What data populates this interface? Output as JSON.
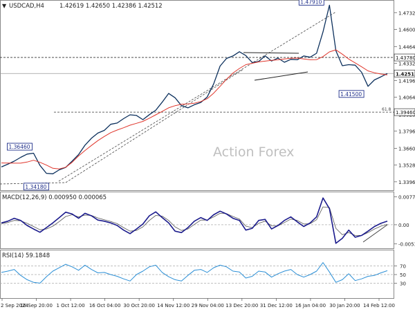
{
  "header": {
    "symbol": "USDCAD,H4",
    "ohlc": "1.42619 1.42650 1.42386 1.42512"
  },
  "watermark": "Action Forex",
  "colors": {
    "price": "#0b2f5c",
    "ma": "#e0352b",
    "macd": "#1a1a8c",
    "signal": "#555555",
    "rsi": "#2b8fd6",
    "grid": "#bbbbbb",
    "box": "#1f2f8a"
  },
  "chart_data": [
    {
      "type": "line",
      "name": "price",
      "y_range": [
        1.3346,
        1.4788
      ],
      "y_ticks": [
        "1.47320",
        "1.46000",
        "1.44640",
        "1.43320",
        "1.41960",
        "1.40640",
        "1.39280",
        "1.37960",
        "1.36600",
        "1.35280",
        "1.33960"
      ],
      "x_ticks": [
        "2 Sep 2024",
        "16 Sep 20:00",
        "1 Oct 12:00",
        "16 Oct 04:00",
        "30 Oct 20:00",
        "14 Nov 12:00",
        "29 Nov 04:00",
        "13 Dec 20:00",
        "31 Dec 12:00",
        "16 Jan 04:00",
        "30 Jan 20:00",
        "14 Feb 12:00"
      ],
      "series": [
        {
          "values": [
            1.3513,
            1.3535,
            1.3559,
            1.3589,
            1.3615,
            1.3622,
            1.3525,
            1.3463,
            1.3459,
            1.3491,
            1.351,
            1.3559,
            1.3611,
            1.3685,
            1.374,
            1.3781,
            1.3802,
            1.385,
            1.386,
            1.3895,
            1.3925,
            1.392,
            1.3887,
            1.3926,
            1.3961,
            1.4025,
            1.4094,
            1.406,
            1.3997,
            1.398,
            1.4005,
            1.4023,
            1.4066,
            1.4169,
            1.431,
            1.437,
            1.439,
            1.4423,
            1.4393,
            1.4338,
            1.4346,
            1.4391,
            1.435,
            1.4373,
            1.434,
            1.4363,
            1.436,
            1.439,
            1.438,
            1.4411,
            1.458,
            1.4791,
            1.4432,
            1.4313,
            1.4321,
            1.4317,
            1.4261,
            1.415,
            1.4201,
            1.4225,
            1.4251
          ]
        },
        {
          "values": [
            1.3545,
            1.3544,
            1.3543,
            1.3543,
            1.3552,
            1.3566,
            1.355,
            1.3528,
            1.3503,
            1.3498,
            1.3511,
            1.355,
            1.36,
            1.3643,
            1.3683,
            1.3721,
            1.3754,
            1.3784,
            1.3805,
            1.3823,
            1.3843,
            1.3858,
            1.3873,
            1.3898,
            1.3925,
            1.3952,
            1.398,
            1.3997,
            1.4008,
            1.4011,
            1.4017,
            1.403,
            1.4052,
            1.4096,
            1.415,
            1.4206,
            1.4255,
            1.4291,
            1.4321,
            1.4332,
            1.4343,
            1.4349,
            1.4355,
            1.4359,
            1.4366,
            1.4372,
            1.4373,
            1.4366,
            1.436,
            1.4361,
            1.4385,
            1.4422,
            1.4438,
            1.4404,
            1.4365,
            1.4335,
            1.4304,
            1.4272,
            1.4257,
            1.4247,
            1.424
          ]
        }
      ],
      "levels": [
        "1.43780",
        "1.42512",
        "1.39460"
      ],
      "fib_label": "61.8",
      "annotations": [
        "1.47910",
        "1.36460",
        "1.34180",
        "1.41500"
      ]
    },
    {
      "type": "line",
      "title": "MACD(12,26,9) 0.000950 0.000065",
      "y_range": [
        -0.0064,
        0.0085
      ],
      "y_ticks": [
        "0.007791",
        "0.00",
        "-0.005367"
      ],
      "series": [
        {
          "values": [
            0.0005,
            0.001,
            0.0018,
            0.0012,
            -0.0002,
            -0.0012,
            -0.0021,
            -0.0008,
            0.0005,
            0.002,
            0.0035,
            0.003,
            0.0018,
            0.0032,
            0.0025,
            0.0013,
            0.001,
            0.0005,
            -0.0002,
            -0.0015,
            -0.0025,
            -0.0012,
            0.0002,
            0.0025,
            0.0036,
            0.002,
            0.0005,
            -0.0018,
            -0.0022,
            -0.0008,
            0.001,
            0.002,
            0.0012,
            0.0028,
            0.0038,
            0.003,
            0.0018,
            0.0012,
            -0.0015,
            -0.001,
            0.0012,
            0.0015,
            -0.0012,
            -0.0002,
            0.0012,
            0.0022,
            0.0008,
            -0.0005,
            0.0005,
            0.0022,
            0.0075,
            0.0045,
            -0.0052,
            -0.0038,
            -0.0015,
            -0.0035,
            -0.003,
            -0.0018,
            -0.0005,
            0.0004,
            0.001
          ]
        },
        {
          "values": [
            0.0003,
            0.0006,
            0.0012,
            0.0011,
            0.0004,
            -0.0005,
            -0.0014,
            -0.0012,
            -0.0004,
            0.0009,
            0.0023,
            0.0028,
            0.0022,
            0.0027,
            0.0026,
            0.0019,
            0.0014,
            0.0009,
            0.0003,
            -0.0008,
            -0.0018,
            -0.0016,
            -0.0006,
            0.0012,
            0.0026,
            0.0024,
            0.0012,
            -0.0006,
            -0.0016,
            -0.0012,
            0.0001,
            0.0013,
            0.0013,
            0.0022,
            0.0032,
            0.0031,
            0.0023,
            0.0016,
            -0.0004,
            -0.0008,
            0.0004,
            0.001,
            -0.0003,
            -0.0003,
            0.0006,
            0.0016,
            0.0012,
            0.0002,
            0.0003,
            0.0014,
            0.005,
            0.0048,
            -0.001,
            -0.0028,
            -0.0022,
            -0.003,
            -0.003,
            -0.0022,
            -0.0012,
            -0.0004,
            0.0001
          ]
        }
      ]
    },
    {
      "type": "line",
      "title": "RSI(14) 59.1848",
      "y_range": [
        0,
        100
      ],
      "y_ticks": [
        "70",
        "50",
        "30"
      ],
      "series": [
        {
          "values": [
            55,
            58,
            62,
            48,
            38,
            32,
            30,
            45,
            58,
            66,
            74,
            68,
            60,
            72,
            62,
            54,
            55,
            50,
            46,
            40,
            35,
            50,
            58,
            68,
            72,
            55,
            45,
            38,
            35,
            48,
            60,
            62,
            55,
            66,
            72,
            68,
            58,
            56,
            42,
            46,
            58,
            56,
            44,
            52,
            58,
            62,
            50,
            44,
            50,
            58,
            78,
            56,
            32,
            38,
            52,
            36,
            40,
            46,
            48,
            54,
            59
          ]
        }
      ]
    }
  ]
}
